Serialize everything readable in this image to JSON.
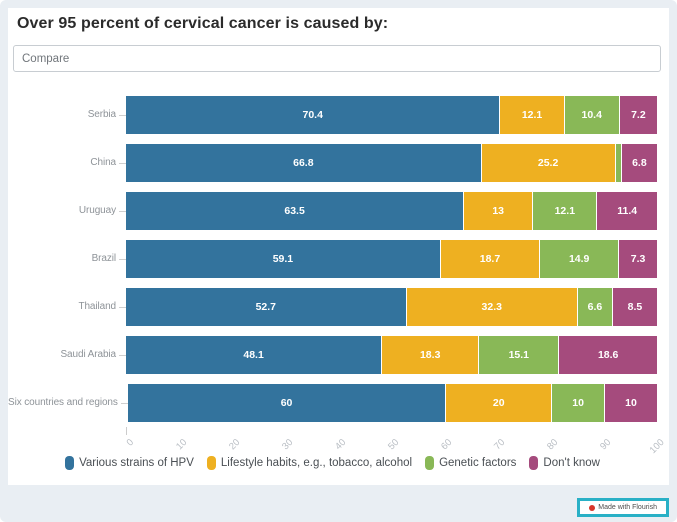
{
  "page": {
    "title": "Over 95 percent of cervical cancer is caused by:",
    "compare_placeholder": "Compare",
    "badge_label": "Made with Flourish"
  },
  "colors": {
    "frame_bg": "#e9eef3",
    "card_bg": "#ffffff",
    "title_text": "#2b2b2b",
    "row_label_text": "#8e9398",
    "axis_tick_text": "#b9bec4",
    "legend_text": "#4a4f54",
    "value_label_text": "#ffffff",
    "badge_border": "#29b0c6",
    "badge_dot": "#d8352a"
  },
  "chart_data": {
    "type": "bar",
    "variant": "horizontal-stacked",
    "stacking": "percent",
    "title": "Over 95 percent of cervical cancer is caused by:",
    "categories": [
      "Serbia",
      "China",
      "Uruguay",
      "Brazil",
      "Thailand",
      "Saudi Arabia",
      "Six countries and regions"
    ],
    "series": [
      {
        "name": "Various strains of HPV",
        "color": "#33739d",
        "values": [
          70.4,
          66.8,
          63.5,
          59.1,
          52.7,
          48.1,
          60
        ]
      },
      {
        "name": "Lifestyle habits, e.g., tobacco, alcohol",
        "color": "#eeb021",
        "values": [
          12.1,
          25.2,
          13,
          18.7,
          32.3,
          18.3,
          20
        ]
      },
      {
        "name": "Genetic factors",
        "color": "#89b857",
        "values": [
          10.4,
          1.2,
          12.1,
          14.9,
          6.6,
          15.1,
          10
        ]
      },
      {
        "name": "Don't know",
        "color": "#a54b7d",
        "values": [
          7.2,
          6.8,
          11.4,
          7.3,
          8.5,
          18.6,
          10
        ]
      }
    ],
    "x_ticks": [
      0,
      10,
      20,
      30,
      40,
      50,
      60,
      70,
      80,
      90,
      100
    ],
    "xlim": [
      0,
      100
    ],
    "value_label_min": 3,
    "grid": false,
    "legend_position": "bottom"
  }
}
